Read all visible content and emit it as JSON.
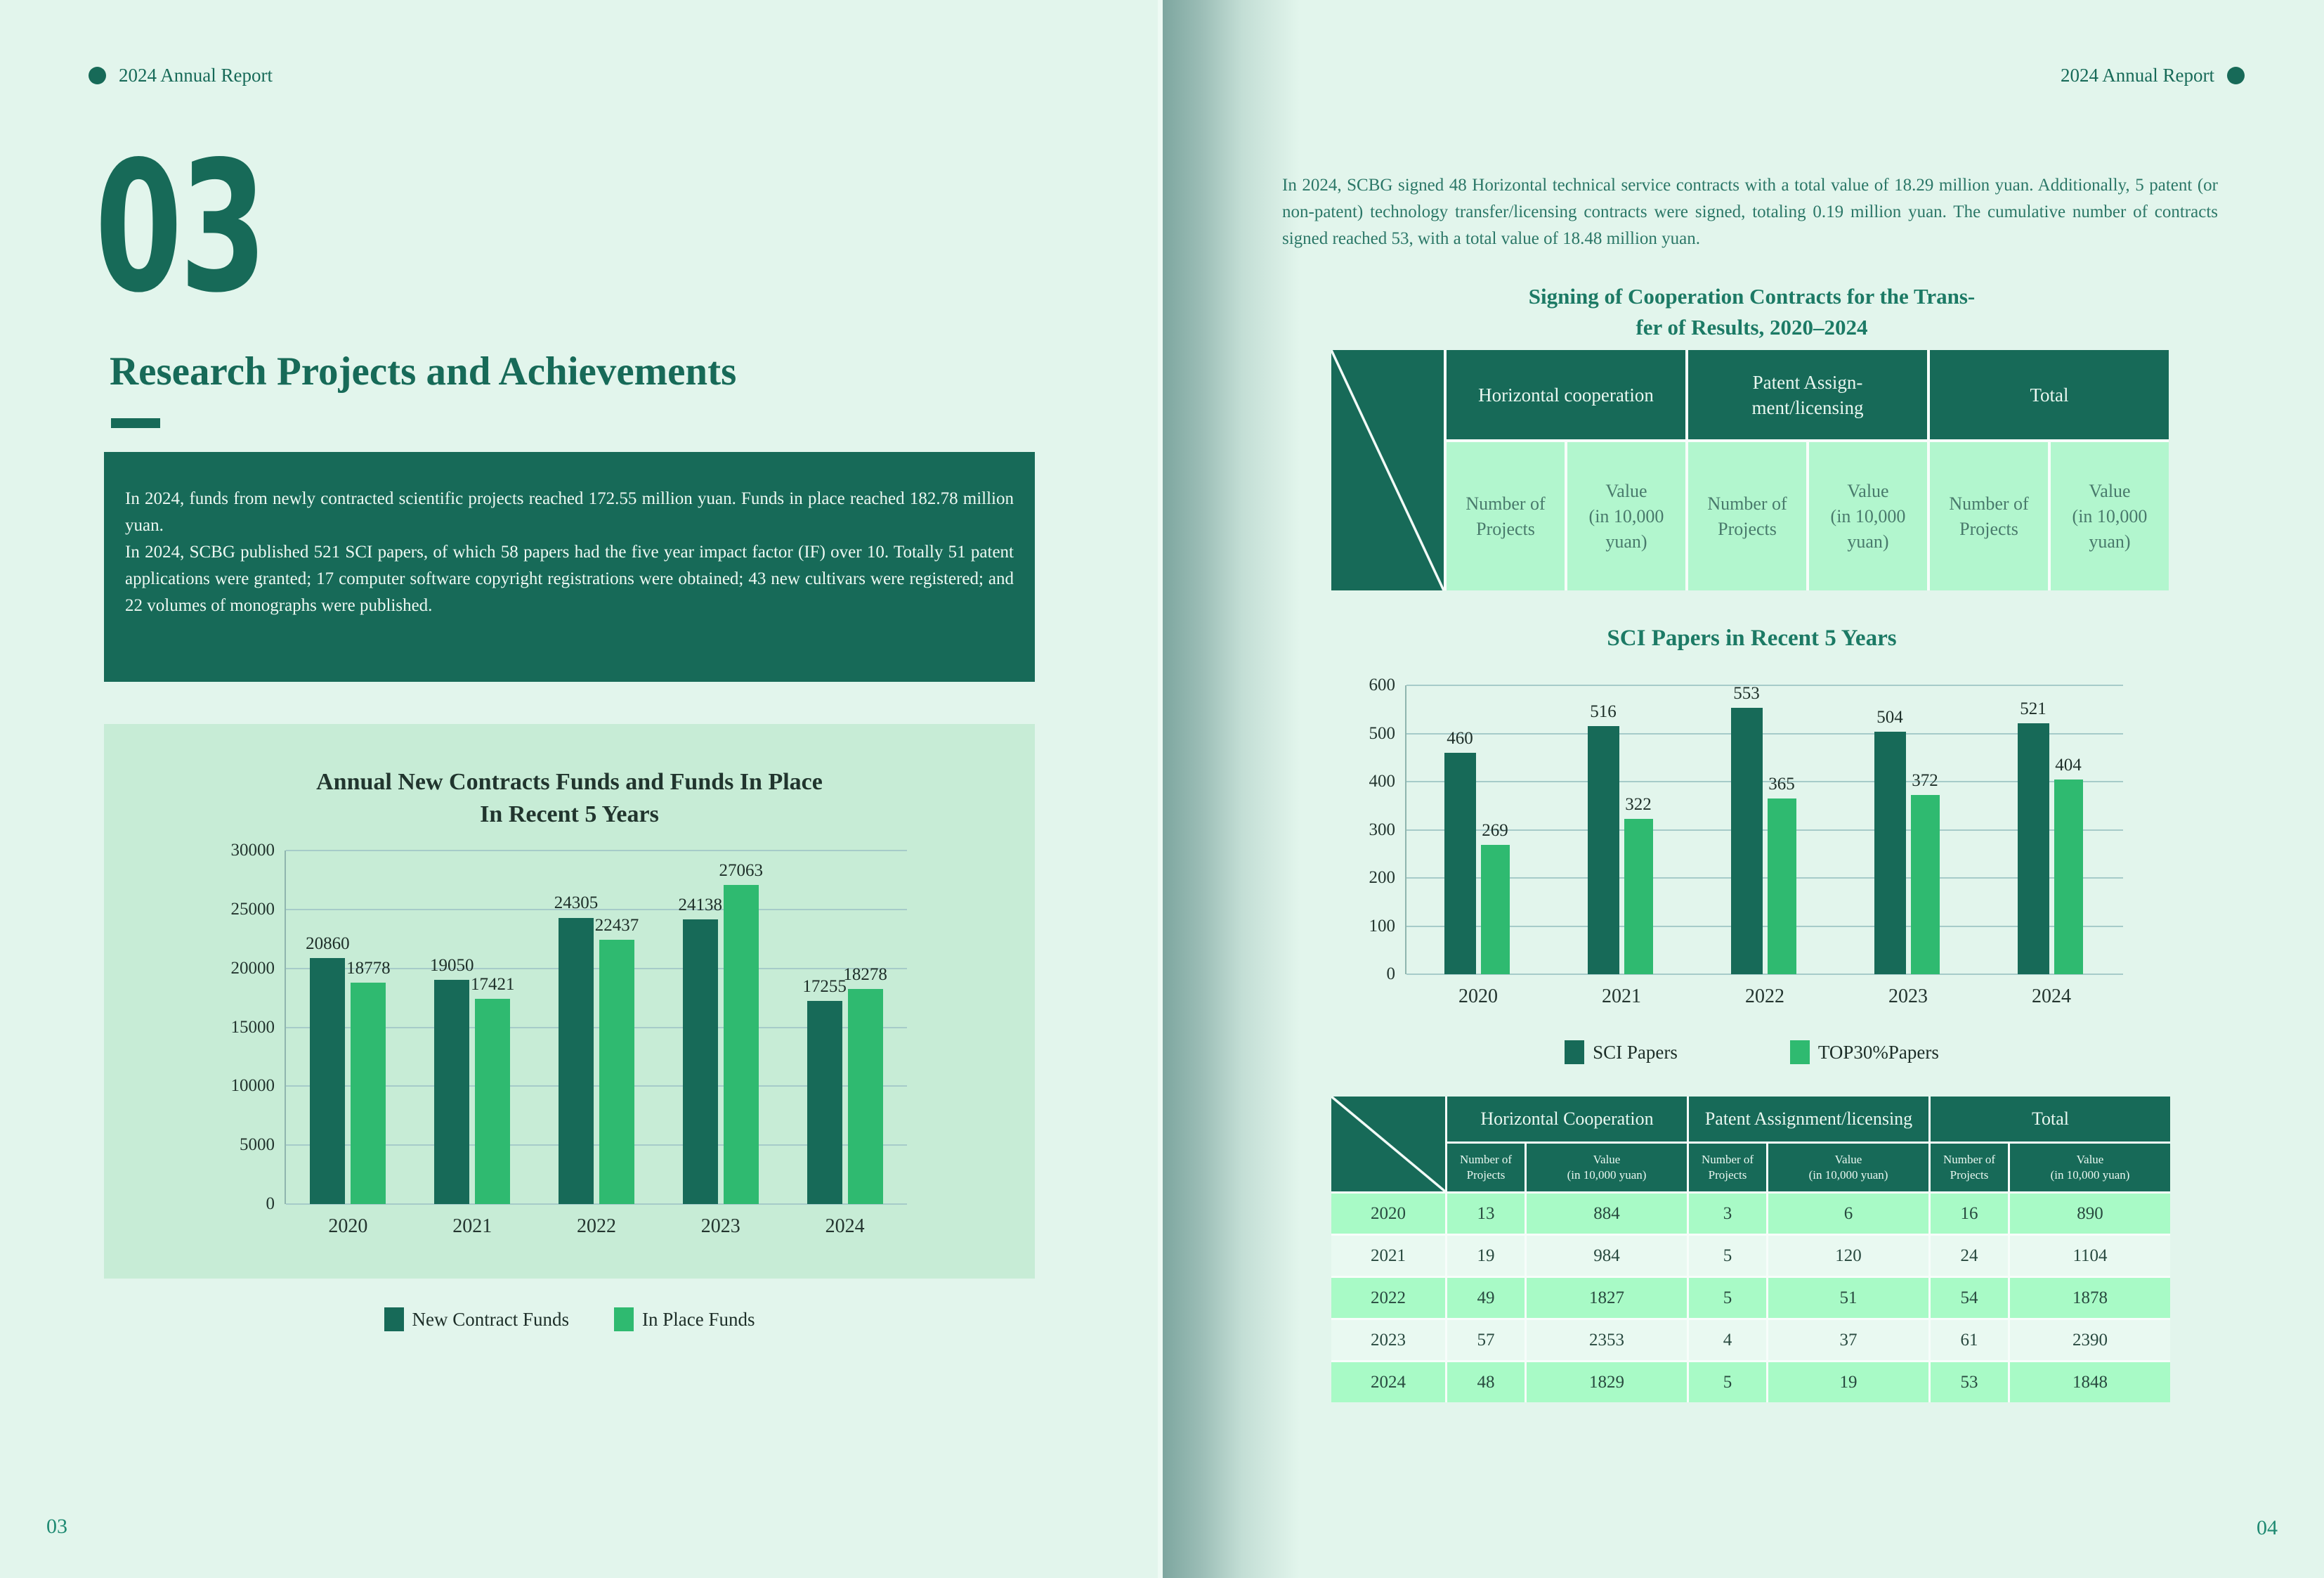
{
  "document": {
    "header_left": "2024 Annual Report",
    "header_right": "2024 Annual Report",
    "chapter_number": "03",
    "chapter_title": "Research Projects and Achievements",
    "page_number_left": "03",
    "page_number_right": "04",
    "summary_box": {
      "para1": "In 2024, funds from newly contracted scientific projects reached 172.55 million yuan. Funds in place reached 182.78 million yuan.",
      "para2": "In 2024, SCBG published 521 SCI papers, of which 58 papers had the five year impact factor (IF) over 10. Totally 51 patent applications were granted; 17 computer software copyright registrations were obtained; 43 new cultivars were registered; and 22 volumes of monographs were published."
    },
    "intro_right": "In 2024, SCBG signed 48 Horizontal technical service contracts with a total value of 18.29 million yuan. Additionally, 5 patent (or non-patent) technology transfer/licensing contracts were signed, totaling 0.19 million yuan. The cumulative number of contracts signed reached 53, with a total value of 18.48 million yuan.",
    "contracts_table_title": "Signing of Cooperation Contracts for the Trans-\nfer of Results, 2020–2024"
  },
  "colors": {
    "page_bg": "#e2f5ec",
    "dark_green": "#176a58",
    "light_green_bar": "#2fba70",
    "chart_box_bg": "#c7ecd6",
    "table_light_cell": "#b2f6ce",
    "table_row_green": "#a8fac6",
    "gridline": "#a6cbc9",
    "fold_shadow": "#7da69f"
  },
  "header_table": {
    "groups": [
      "Horizontal cooperation",
      "Patent Assign-\nment/licensing",
      "Total"
    ],
    "subheaders": [
      "Number of\nProjects",
      "Value\n(in 10,000\nyuan)"
    ]
  },
  "data_table": {
    "groups": [
      "Horizontal Cooperation",
      "Patent Assignment/licensing",
      "Total"
    ],
    "subheaders": [
      "Number of\nProjects",
      "Value\n(in 10,000 yuan)"
    ],
    "rows": [
      {
        "year": "2020",
        "values": [
          "13",
          "884",
          "3",
          "6",
          "16",
          "890"
        ]
      },
      {
        "year": "2021",
        "values": [
          "19",
          "984",
          "5",
          "120",
          "24",
          "1104"
        ]
      },
      {
        "year": "2022",
        "values": [
          "49",
          "1827",
          "5",
          "51",
          "54",
          "1878"
        ]
      },
      {
        "year": "2023",
        "values": [
          "57",
          "2353",
          "4",
          "37",
          "61",
          "2390"
        ]
      },
      {
        "year": "2024",
        "values": [
          "48",
          "1829",
          "5",
          "19",
          "53",
          "1848"
        ]
      }
    ]
  },
  "chart_data": [
    {
      "type": "bar",
      "title": "Annual New Contracts Funds and Funds In Place\nIn Recent 5 Years",
      "categories": [
        "2020",
        "2021",
        "2022",
        "2023",
        "2024"
      ],
      "series": [
        {
          "name": "New Contract Funds",
          "values": [
            20860,
            19050,
            24305,
            24138,
            17255
          ],
          "color": "#176a58"
        },
        {
          "name": "In Place Funds",
          "values": [
            18778,
            17421,
            22437,
            27063,
            18278
          ],
          "color": "#2fba70"
        }
      ],
      "xlabel": "",
      "ylabel": "",
      "ylim": [
        0,
        30000
      ],
      "yticks": [
        0,
        5000,
        10000,
        15000,
        20000,
        25000,
        30000
      ],
      "grid": true,
      "legend_position": "bottom"
    },
    {
      "type": "bar",
      "title": "SCI Papers in Recent 5 Years",
      "categories": [
        "2020",
        "2021",
        "2022",
        "2023",
        "2024"
      ],
      "series": [
        {
          "name": "SCI Papers",
          "values": [
            460,
            516,
            553,
            504,
            521
          ],
          "color": "#176a58"
        },
        {
          "name": "TOP30%Papers",
          "values": [
            269,
            322,
            365,
            372,
            404
          ],
          "color": "#2fba70"
        }
      ],
      "xlabel": "",
      "ylabel": "",
      "ylim": [
        0,
        600
      ],
      "yticks": [
        0,
        100,
        200,
        300,
        400,
        500,
        600
      ],
      "grid": true,
      "legend_position": "bottom"
    }
  ]
}
